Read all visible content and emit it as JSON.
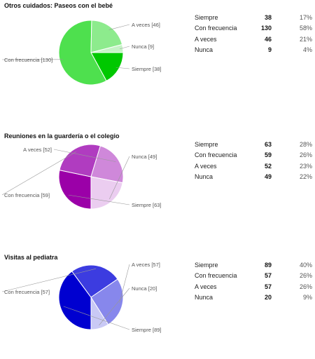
{
  "chart_data": [
    {
      "type": "pie",
      "title": "Otros cuidados: Paseos con el bebé",
      "slices": [
        {
          "label": "Siempre",
          "value": 38,
          "percent": "17%",
          "color": "#00c800",
          "chart_label": "Siempre [38]"
        },
        {
          "label": "Con frecuencia",
          "value": 130,
          "percent": "58%",
          "color": "#4ee04e",
          "chart_label": "Con frecuencia [130]"
        },
        {
          "label": "A veces",
          "value": 46,
          "percent": "21%",
          "color": "#8deb8d",
          "chart_label": "A veces [46]"
        },
        {
          "label": "Nunca",
          "value": 9,
          "percent": "4%",
          "color": "#c6f3c6",
          "chart_label": "Nunca [9]"
        }
      ]
    },
    {
      "type": "pie",
      "title": "Reuniones en la guardería o el colegio",
      "slices": [
        {
          "label": "Siempre",
          "value": 63,
          "percent": "28%",
          "color": "#9b00a8",
          "chart_label": "Siempre [63]"
        },
        {
          "label": "Con frecuencia",
          "value": 59,
          "percent": "26%",
          "color": "#b03cc0",
          "chart_label": "Con frecuencia [59]"
        },
        {
          "label": "A veces",
          "value": 52,
          "percent": "23%",
          "color": "#cf88da",
          "chart_label": "A veces [52]"
        },
        {
          "label": "Nunca",
          "value": 49,
          "percent": "22%",
          "color": "#ebcdf0",
          "chart_label": "Nunca [49]"
        }
      ]
    },
    {
      "type": "pie",
      "title": "Visitas al pediatra",
      "slices": [
        {
          "label": "Siempre",
          "value": 89,
          "percent": "40%",
          "color": "#0000d0",
          "chart_label": "Siempre [89]"
        },
        {
          "label": "Con frecuencia",
          "value": 57,
          "percent": "26%",
          "color": "#3c3ce0",
          "chart_label": "Con frecuencia [57]"
        },
        {
          "label": "A veces",
          "value": 57,
          "percent": "26%",
          "color": "#8787ec",
          "chart_label": "A veces [57]"
        },
        {
          "label": "Nunca",
          "value": 20,
          "percent": "9%",
          "color": "#c9c9f5",
          "chart_label": "Nunca [20]"
        }
      ]
    }
  ]
}
